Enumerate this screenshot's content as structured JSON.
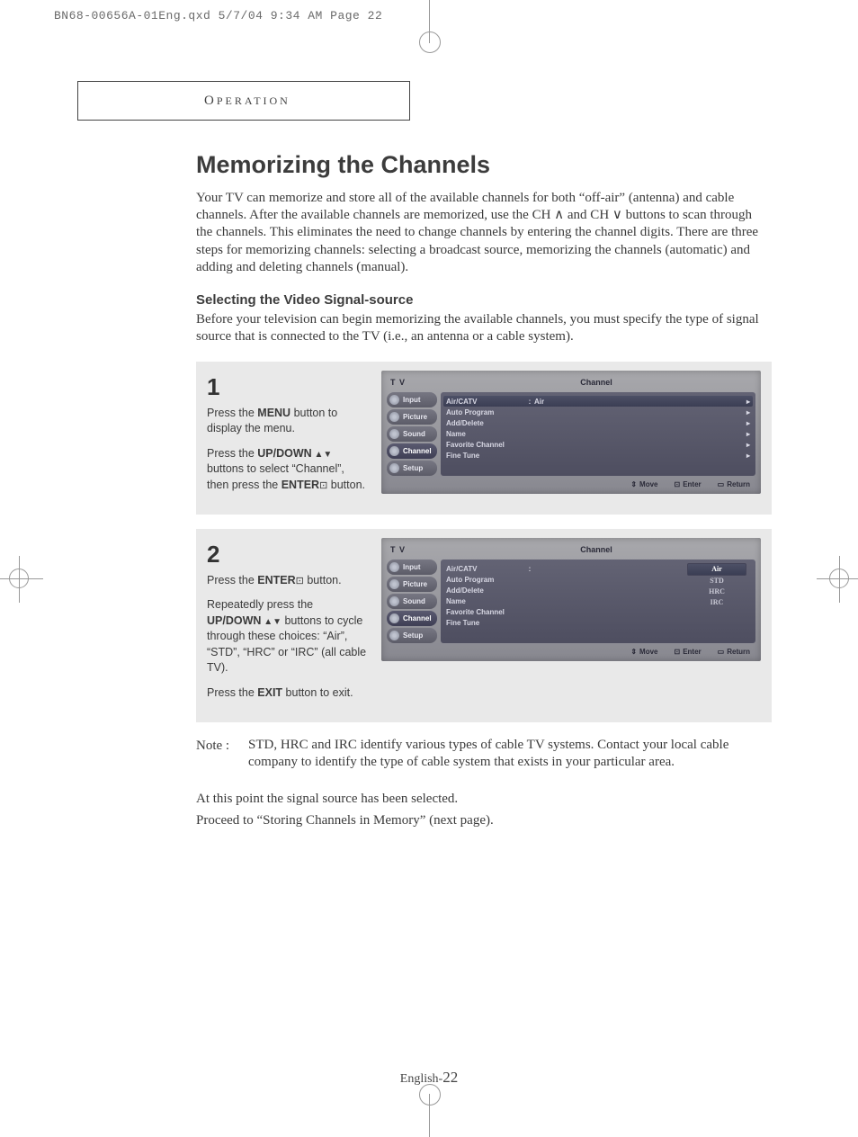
{
  "print_header": "BN68-00656A-01Eng.qxd  5/7/04 9:34 AM  Page 22",
  "section_tab": "OPERATION",
  "heading": "Memorizing the Channels",
  "intro": "Your TV can memorize and store all of the available channels for both “off-air” (antenna) and cable channels. After the available channels are memorized, use the CH ∧ and CH ∨ buttons to scan through the channels. This eliminates the need to change channels by entering the channel digits. There are three steps for memorizing channels: selecting a broadcast source, memorizing the channels (automatic) and adding and deleting channels (manual).",
  "subheading": "Selecting the Video Signal-source",
  "subintro": "Before your television can begin memorizing the available channels, you must specify the type of signal source that is connected to the TV (i.e., an antenna or a cable system).",
  "steps": {
    "s1": {
      "num": "1",
      "p1a": "Press the ",
      "p1b": "MENU",
      "p1c": " button to display the menu.",
      "p2a": "Press the ",
      "p2b": "UP/DOWN",
      "p2c": " buttons to select “Channel”, then press the ",
      "p2d": "ENTER",
      "p2e": " button."
    },
    "s2": {
      "num": "2",
      "p1a": "Press the ",
      "p1b": "ENTER",
      "p1c": " button.",
      "p2a": "Repeatedly press the ",
      "p2b": "UP/DOWN",
      "p2c": " buttons to cycle through these choices: “Air”, “STD”, “HRC” or “IRC” (all cable TV).",
      "p3a": "Press the ",
      "p3b": "EXIT",
      "p3c": " button to exit."
    }
  },
  "osd": {
    "tv_label": "T V",
    "panel_title": "Channel",
    "side": [
      "Input",
      "Picture",
      "Sound",
      "Channel",
      "Setup"
    ],
    "menu": {
      "air_catv": "Air/CATV",
      "air_val": "Air",
      "auto_program": "Auto Program",
      "add_delete": "Add/Delete",
      "name": "Name",
      "favorite": "Favorite  Channel",
      "fine_tune": "Fine Tune"
    },
    "options": [
      "Air",
      "STD",
      "HRC",
      "IRC"
    ],
    "foot": {
      "move": "Move",
      "enter": "Enter",
      "return": "Return"
    }
  },
  "note_label": "Note : ",
  "note_body": "STD, HRC and IRC identify various types of cable TV systems. Contact your local cable company to identify the type of cable system that exists in your particular area.",
  "after1": "At this point the signal source has been selected.",
  "after2": "Proceed to “Storing Channels in Memory” (next page).",
  "footer_prefix": "English-",
  "footer_page": "22"
}
